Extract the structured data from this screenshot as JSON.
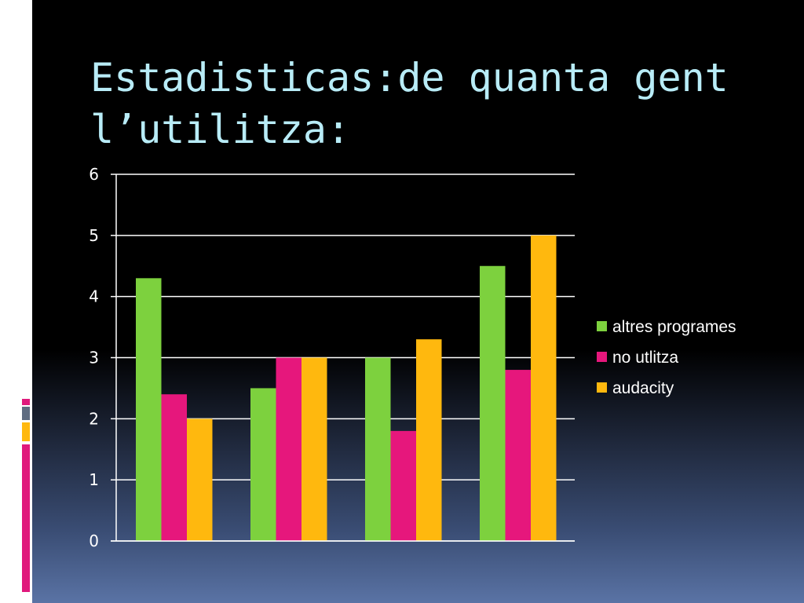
{
  "slide": {
    "title": "Estadisticas:de quanta gent l’utilitza:"
  },
  "chart_data": {
    "type": "bar",
    "title": "Estadisticas:de quanta gent l’utilitza:",
    "xlabel": "",
    "ylabel": "",
    "categories": [
      "",
      "",
      "",
      ""
    ],
    "ylim": [
      0,
      6
    ],
    "yticks": [
      "0",
      "1",
      "2",
      "3",
      "4",
      "5",
      "6"
    ],
    "grid": true,
    "legend_position": "right",
    "series": [
      {
        "name": "altres programes",
        "color": "#7dd13e",
        "values": [
          4.3,
          2.5,
          3.0,
          4.5
        ]
      },
      {
        "name": "no utlitza",
        "color": "#e6177c",
        "values": [
          2.4,
          3.0,
          1.8,
          2.8
        ]
      },
      {
        "name": "audacity",
        "color": "#ffb80e",
        "values": [
          2.0,
          3.0,
          3.3,
          5.0
        ]
      }
    ]
  }
}
